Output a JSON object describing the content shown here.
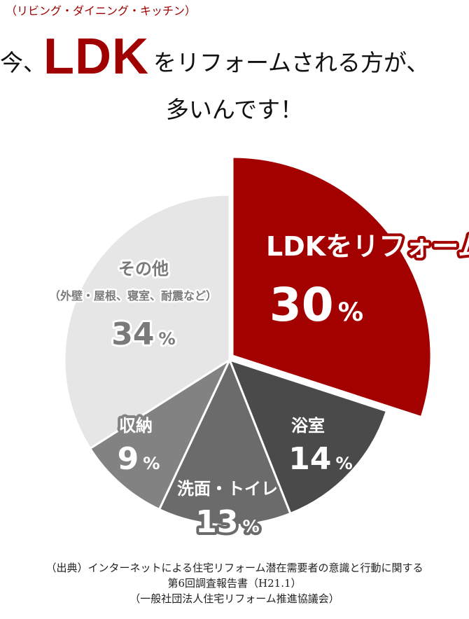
{
  "header": {
    "subtitle": "（リビング・ダイニング・キッチン）",
    "line1_pre": "今、",
    "line1_ldk": "LDK",
    "line1_post": "をリフォームされる方が、",
    "line2": "多いんです！"
  },
  "chart_data": {
    "type": "pie",
    "start": "top",
    "direction": "clockwise",
    "unit": "%",
    "slices": [
      {
        "label": "LDKをリフォーム",
        "value": 30,
        "color": "#a30000",
        "exploded": true
      },
      {
        "label": "浴室",
        "value": 14,
        "color": "#4a4a4a"
      },
      {
        "label": "洗面・トイレ",
        "value": 13,
        "color": "#6b6b6b"
      },
      {
        "label": "収納",
        "value": 9,
        "color": "#828282"
      },
      {
        "label": "その他",
        "sublabel": "（外壁・屋根、寝室、耐震など）",
        "value": 34,
        "color": "#e6e6e6"
      }
    ]
  },
  "source": {
    "line1": "（出典）インターネットによる住宅リフォーム潜在需要者の意識と行動に関する",
    "line2": "第6回調査報告書（H21.1）",
    "line3": "（一般社団法人住宅リフォーム推進協議会）"
  }
}
